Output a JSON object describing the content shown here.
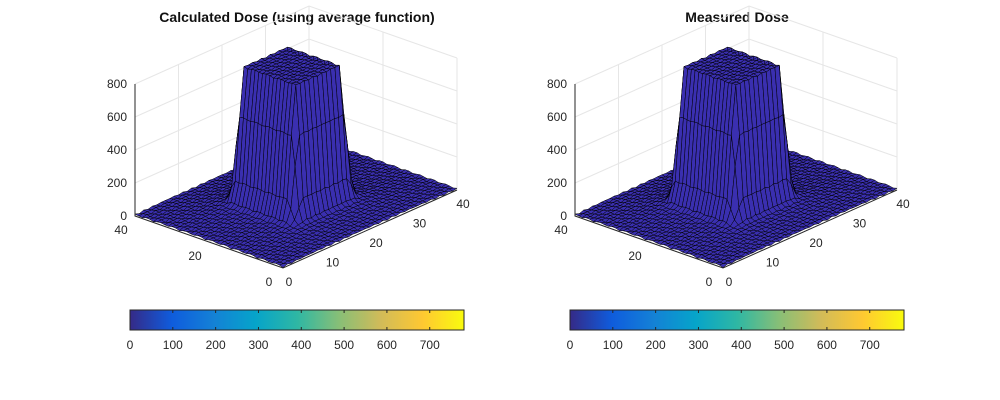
{
  "chart_data": [
    {
      "type": "surface",
      "title": "Calculated Dose (using average function)",
      "xlabel": "",
      "ylabel": "",
      "zlabel": "",
      "x_range": [
        0,
        40
      ],
      "y_range": [
        0,
        40
      ],
      "zlim": [
        0,
        800
      ],
      "x_ticks": [
        "0",
        "10",
        "20",
        "30",
        "40"
      ],
      "y_ticks": [
        "0",
        "20",
        "40"
      ],
      "z_ticks": [
        "0",
        "200",
        "400",
        "600",
        "800"
      ],
      "peak_value": 780,
      "peak_region": {
        "x": [
          14,
          24
        ],
        "y": [
          13,
          27
        ]
      },
      "colorbar": {
        "orientation": "horizontal",
        "location": "bottom",
        "range": [
          0,
          780
        ],
        "ticks": [
          "0",
          "100",
          "200",
          "300",
          "400",
          "500",
          "600",
          "700"
        ]
      },
      "colormap": "parula",
      "grid": true
    },
    {
      "type": "surface",
      "title": "Measured Dose",
      "xlabel": "",
      "ylabel": "",
      "zlabel": "",
      "x_range": [
        0,
        40
      ],
      "y_range": [
        0,
        40
      ],
      "zlim": [
        0,
        800
      ],
      "x_ticks": [
        "0",
        "10",
        "20",
        "30",
        "40"
      ],
      "y_ticks": [
        "0",
        "20",
        "40"
      ],
      "z_ticks": [
        "0",
        "200",
        "400",
        "600",
        "800"
      ],
      "peak_value": 780,
      "peak_region": {
        "x": [
          14,
          24
        ],
        "y": [
          13,
          27
        ]
      },
      "colorbar": {
        "orientation": "horizontal",
        "location": "bottom",
        "range": [
          0,
          780
        ],
        "ticks": [
          "0",
          "100",
          "200",
          "300",
          "400",
          "500",
          "600",
          "700"
        ]
      },
      "colormap": "parula",
      "grid": true
    }
  ],
  "colors": {
    "surface_face": "#3a2fb0",
    "surface_edge": "#000000",
    "parula": [
      "#352a87",
      "#0f5cdd",
      "#1481d6",
      "#06a4ca",
      "#2eb7a4",
      "#87bf77",
      "#d1bb59",
      "#fec832",
      "#f9fb0e"
    ]
  }
}
